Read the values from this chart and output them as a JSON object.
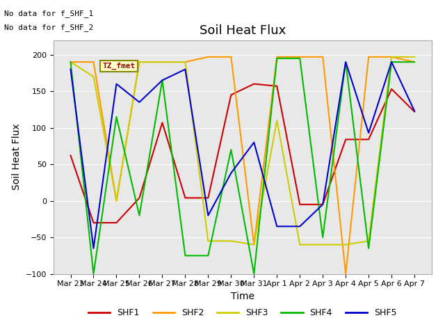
{
  "title": "Soil Heat Flux",
  "xlabel": "Time",
  "ylabel": "Soil Heat Flux",
  "annotations": [
    "No data for f_SHF_1",
    "No data for f_SHF_2"
  ],
  "legend_label": "TZ_fmet",
  "legend_series": [
    "SHF1",
    "SHF2",
    "SHF3",
    "SHF4",
    "SHF5"
  ],
  "series_colors": [
    "#cc0000",
    "#ff9900",
    "#cccc00",
    "#00bb00",
    "#0000cc"
  ],
  "ylim": [
    -100,
    220
  ],
  "background_color": "#e8e8e8",
  "x_labels": [
    "Mar 23",
    "Mar 24",
    "Mar 25",
    "Mar 26",
    "Mar 27",
    "Mar 28",
    "Mar 29",
    "Mar 30",
    "Mar 31",
    "Apr 1",
    "Apr 2",
    "Apr 3",
    "Apr 4",
    "Apr 5",
    "Apr 6",
    "Apr 7"
  ],
  "SHF1": [
    62,
    -30,
    -30,
    4,
    107,
    4,
    4,
    145,
    160,
    157,
    -5,
    -5,
    84,
    84,
    153,
    122
  ],
  "SHF2": [
    190,
    190,
    0,
    190,
    190,
    190,
    197,
    197,
    -60,
    197,
    197,
    197,
    -100,
    197,
    197,
    190
  ],
  "SHF3": [
    190,
    170,
    0,
    190,
    190,
    190,
    -55,
    -55,
    -60,
    110,
    -60,
    -60,
    -60,
    -55,
    197,
    197
  ],
  "SHF4": [
    190,
    -100,
    115,
    -20,
    165,
    -75,
    -75,
    70,
    -100,
    195,
    195,
    -50,
    190,
    -65,
    190,
    190
  ],
  "SHF5": [
    180,
    -65,
    160,
    135,
    165,
    180,
    -20,
    38,
    80,
    -35,
    -35,
    -5,
    190,
    93,
    190,
    123
  ]
}
